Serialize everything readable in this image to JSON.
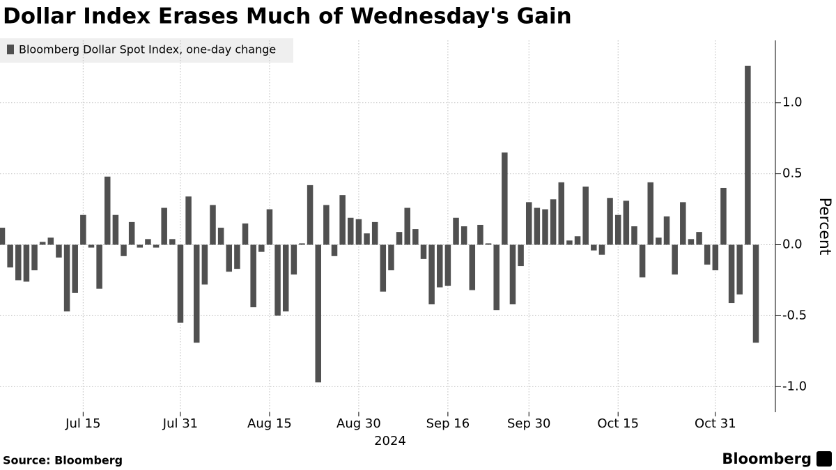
{
  "chart_data": {
    "type": "bar",
    "title": "Dollar Index Erases Much of Wednesday's Gain",
    "legend_label": "Bloomberg Dollar Spot Index, one-day change",
    "ylabel": "Percent",
    "year_label": "2024",
    "source": "Source: Bloomberg",
    "brand": "Bloomberg",
    "color": "#505050",
    "grid": true,
    "ylim": [
      -1.18,
      1.44
    ],
    "yticks": [
      {
        "value": -1,
        "label": "-1.0"
      },
      -0.5,
      {
        "value": 0,
        "label": "0.0"
      },
      0.5,
      {
        "value": 1,
        "label": "1.0"
      }
    ],
    "categories": [
      null,
      null,
      null,
      null,
      null,
      null,
      null,
      null,
      null,
      null,
      "Jul 15",
      null,
      null,
      null,
      null,
      null,
      null,
      null,
      null,
      null,
      null,
      null,
      "Jul 31",
      null,
      null,
      null,
      null,
      null,
      null,
      null,
      null,
      null,
      null,
      "Aug 15",
      null,
      null,
      null,
      null,
      null,
      null,
      null,
      null,
      null,
      null,
      "Aug 30",
      null,
      null,
      null,
      null,
      null,
      null,
      null,
      null,
      null,
      null,
      "Sep 16",
      null,
      null,
      null,
      null,
      null,
      null,
      null,
      null,
      null,
      "Sep 30",
      null,
      null,
      null,
      null,
      null,
      null,
      null,
      null,
      null,
      null,
      "Oct 15",
      null,
      null,
      null,
      null,
      null,
      null,
      null,
      null,
      null,
      null,
      null,
      "Oct 31",
      null,
      null,
      null,
      null,
      null
    ],
    "values": [
      0.12,
      -0.16,
      -0.25,
      -0.26,
      -0.18,
      0.02,
      0.05,
      -0.09,
      -0.47,
      -0.34,
      0.21,
      -0.02,
      -0.31,
      0.48,
      0.21,
      -0.08,
      0.16,
      -0.02,
      0.04,
      -0.02,
      0.26,
      0.04,
      -0.55,
      0.34,
      -0.69,
      -0.28,
      0.28,
      0.12,
      -0.19,
      -0.17,
      0.15,
      -0.44,
      -0.05,
      0.25,
      -0.5,
      -0.47,
      -0.21,
      0.01,
      0.42,
      -0.97,
      0.28,
      -0.08,
      0.35,
      0.19,
      0.18,
      0.08,
      0.16,
      -0.33,
      -0.18,
      0.09,
      0.26,
      0.11,
      -0.1,
      -0.42,
      -0.3,
      -0.29,
      0.19,
      0.13,
      -0.32,
      0.14,
      0.01,
      -0.46,
      0.65,
      -0.42,
      -0.15,
      0.3,
      0.26,
      0.25,
      0.32,
      0.44,
      0.03,
      0.06,
      0.41,
      -0.04,
      -0.07,
      0.33,
      0.21,
      0.31,
      0.13,
      -0.23,
      0.44,
      0.05,
      0.2,
      -0.21,
      0.3,
      0.04,
      0.09,
      -0.14,
      -0.18,
      0.4,
      -0.41,
      -0.35,
      1.26,
      -0.69
    ]
  }
}
